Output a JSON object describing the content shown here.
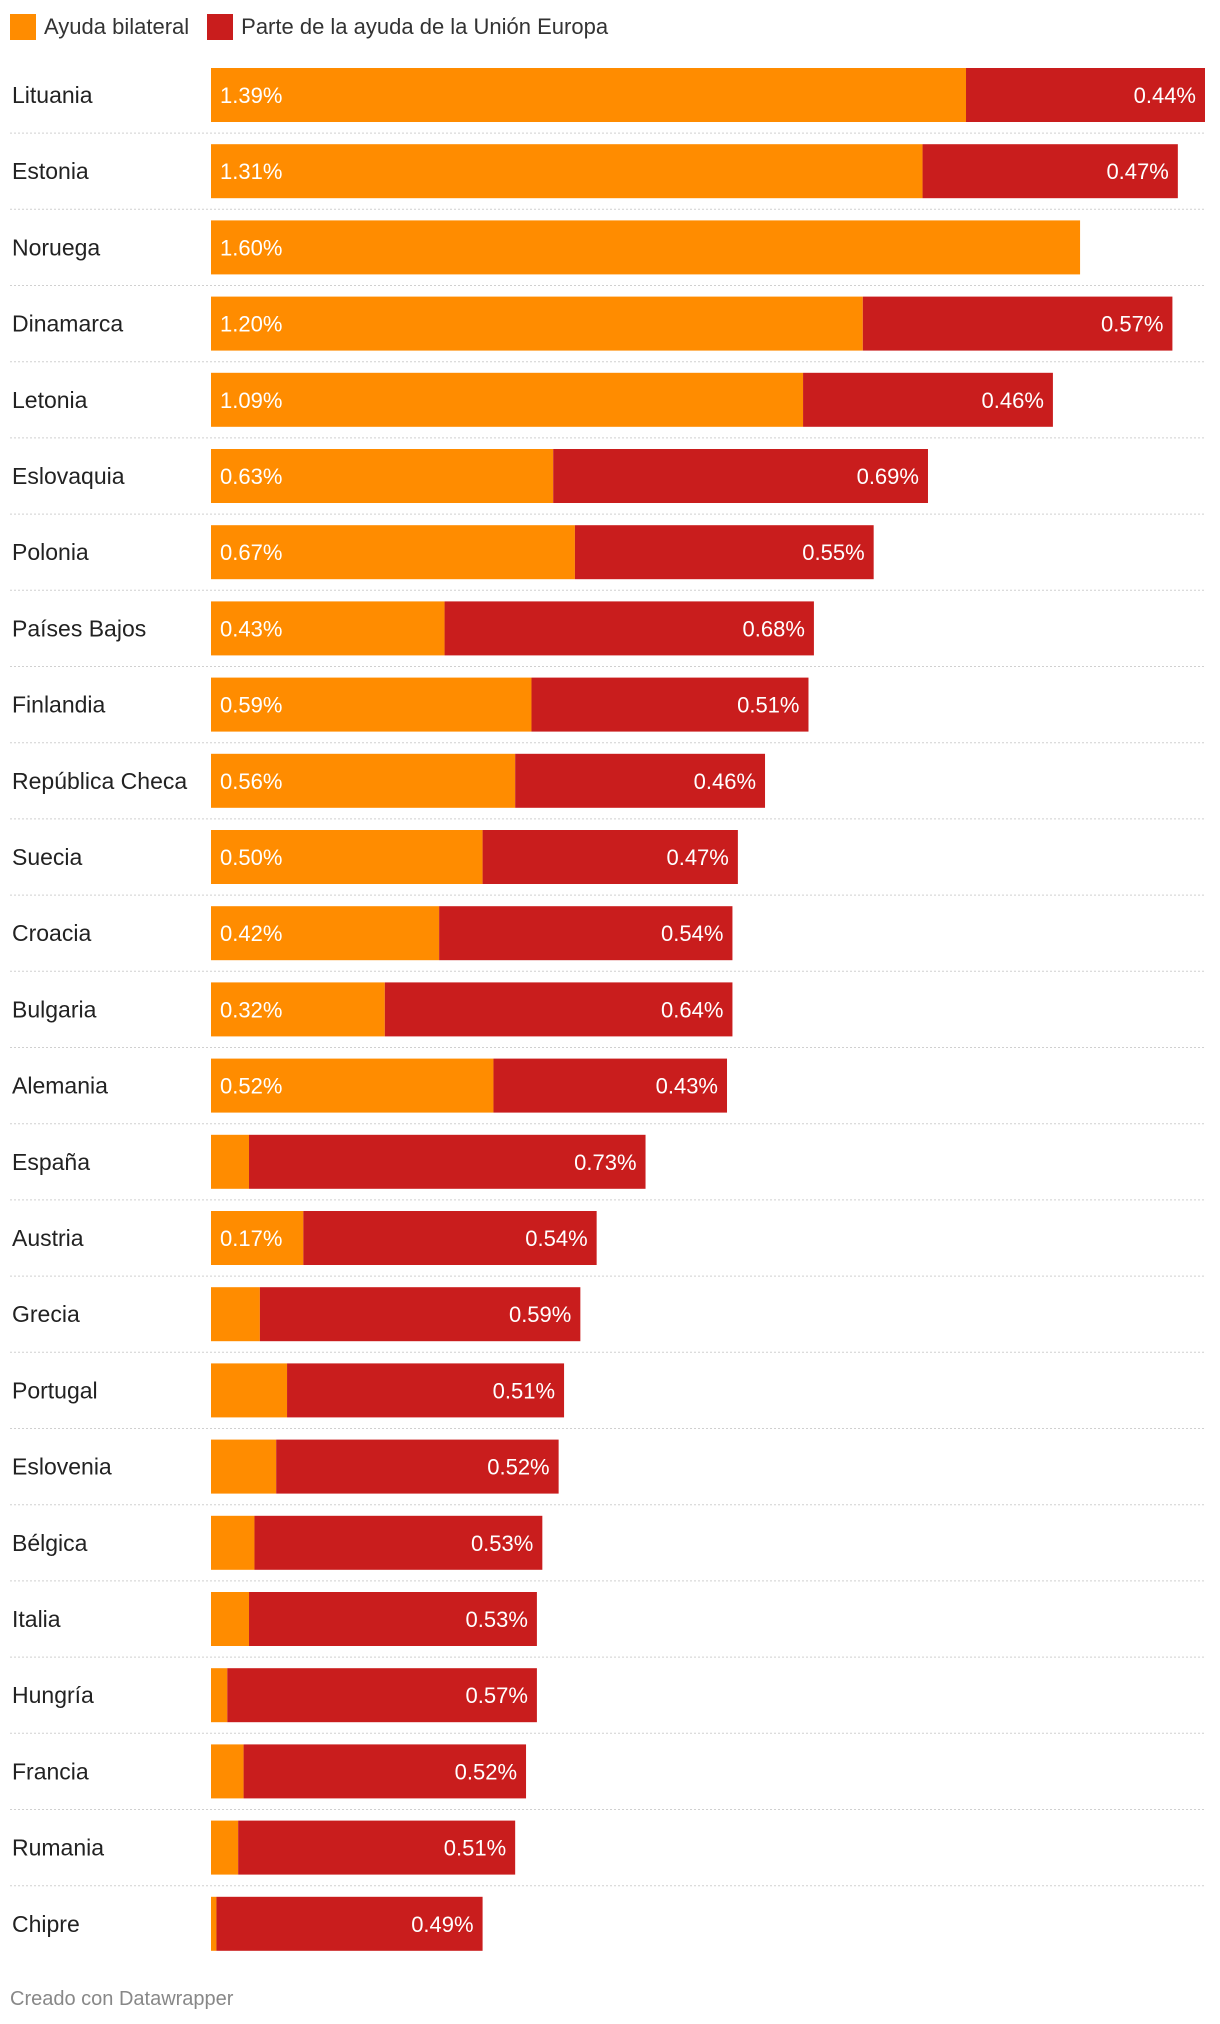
{
  "legend": {
    "items": [
      {
        "label": "Ayuda bilateral",
        "color": "#FF8C00"
      },
      {
        "label": "Parte de la ayuda de la Unión Europa",
        "color": "#C91D1D"
      }
    ]
  },
  "footer": {
    "credit": "Creado con Datawrapper"
  },
  "chart_data": {
    "type": "bar",
    "orientation": "horizontal",
    "stacked": true,
    "categories": [
      "Lituania",
      "Estonia",
      "Noruega",
      "Dinamarca",
      "Letonia",
      "Eslovaquia",
      "Polonia",
      "Países Bajos",
      "Finlandia",
      "República Checa",
      "Suecia",
      "Croacia",
      "Bulgaria",
      "Alemania",
      "España",
      "Austria",
      "Grecia",
      "Portugal",
      "Eslovenia",
      "Bélgica",
      "Italia",
      "Hungría",
      "Francia",
      "Rumania",
      "Chipre"
    ],
    "series": [
      {
        "name": "Ayuda bilateral",
        "color": "#FF8C00",
        "values": [
          1.39,
          1.31,
          1.6,
          1.2,
          1.09,
          0.63,
          0.67,
          0.43,
          0.59,
          0.56,
          0.5,
          0.42,
          0.32,
          0.52,
          0.07,
          0.17,
          0.09,
          0.14,
          0.12,
          0.08,
          0.07,
          0.03,
          0.06,
          0.05,
          0.01
        ],
        "labels": [
          "1.39%",
          "1.31%",
          "1.60%",
          "1.20%",
          "1.09%",
          "0.63%",
          "0.67%",
          "0.43%",
          "0.59%",
          "0.56%",
          "0.50%",
          "0.42%",
          "0.32%",
          "0.52%",
          "",
          "0.17%",
          "",
          "",
          "",
          "",
          "",
          "",
          "",
          "",
          ""
        ]
      },
      {
        "name": "Parte de la ayuda de la Unión Europa",
        "color": "#C91D1D",
        "values": [
          0.44,
          0.47,
          0,
          0.57,
          0.46,
          0.69,
          0.55,
          0.68,
          0.51,
          0.46,
          0.47,
          0.54,
          0.64,
          0.43,
          0.73,
          0.54,
          0.59,
          0.51,
          0.52,
          0.53,
          0.53,
          0.57,
          0.52,
          0.51,
          0.49
        ],
        "labels": [
          "0.44%",
          "0.47%",
          "",
          "0.57%",
          "0.46%",
          "0.69%",
          "0.55%",
          "0.68%",
          "0.51%",
          "0.46%",
          "0.47%",
          "0.54%",
          "0.64%",
          "0.43%",
          "0.73%",
          "0.54%",
          "0.59%",
          "0.51%",
          "0.52%",
          "0.53%",
          "0.53%",
          "0.57%",
          "0.52%",
          "0.51%",
          "0.49%"
        ]
      }
    ],
    "xlim": [
      0,
      1.83
    ],
    "grid": false,
    "legend_position": "top-left"
  }
}
